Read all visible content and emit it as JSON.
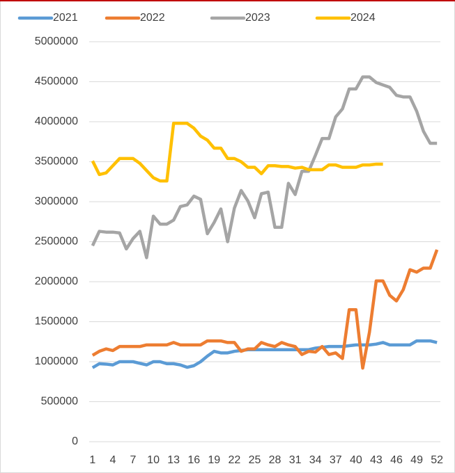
{
  "chart_data": {
    "type": "line",
    "x": [
      1,
      2,
      3,
      4,
      5,
      6,
      7,
      8,
      9,
      10,
      11,
      12,
      13,
      14,
      15,
      16,
      17,
      18,
      19,
      20,
      21,
      22,
      23,
      24,
      25,
      26,
      27,
      28,
      29,
      30,
      31,
      32,
      33,
      34,
      35,
      36,
      37,
      38,
      39,
      40,
      41,
      42,
      43,
      44,
      45,
      46,
      47,
      48,
      49,
      50,
      51,
      52
    ],
    "xlim": [
      0.5,
      52.5
    ],
    "xticks": [
      1,
      4,
      7,
      10,
      13,
      16,
      19,
      22,
      25,
      28,
      31,
      34,
      37,
      40,
      43,
      46,
      49,
      52
    ],
    "ylim": [
      0,
      5000000
    ],
    "yticks": [
      0,
      500000,
      1000000,
      1500000,
      2000000,
      2500000,
      3000000,
      3500000,
      4000000,
      4500000,
      5000000
    ],
    "grid": true,
    "legend": "top",
    "series": [
      {
        "name": "2021",
        "color": "#5b9bd5",
        "values": [
          925000,
          975000,
          970000,
          960000,
          1000000,
          1000000,
          1000000,
          980000,
          960000,
          1000000,
          1000000,
          975000,
          975000,
          960000,
          930000,
          950000,
          1000000,
          1070000,
          1130000,
          1110000,
          1110000,
          1130000,
          1140000,
          1150000,
          1150000,
          1150000,
          1150000,
          1150000,
          1150000,
          1150000,
          1150000,
          1150000,
          1150000,
          1170000,
          1180000,
          1190000,
          1190000,
          1190000,
          1200000,
          1210000,
          1210000,
          1210000,
          1220000,
          1240000,
          1210000,
          1210000,
          1210000,
          1210000,
          1260000,
          1260000,
          1260000,
          1240000
        ]
      },
      {
        "name": "2022",
        "color": "#ed7d31",
        "values": [
          1080000,
          1130000,
          1160000,
          1140000,
          1190000,
          1190000,
          1190000,
          1190000,
          1210000,
          1210000,
          1210000,
          1210000,
          1240000,
          1210000,
          1210000,
          1210000,
          1210000,
          1260000,
          1260000,
          1260000,
          1240000,
          1240000,
          1130000,
          1160000,
          1160000,
          1240000,
          1210000,
          1190000,
          1240000,
          1210000,
          1190000,
          1090000,
          1130000,
          1120000,
          1190000,
          1090000,
          1110000,
          1040000,
          1650000,
          1650000,
          920000,
          1370000,
          2010000,
          2010000,
          1830000,
          1760000,
          1900000,
          2150000,
          2120000,
          2170000,
          2170000,
          2400000
        ]
      },
      {
        "name": "2023",
        "color": "#a5a5a5",
        "values": [
          2450000,
          2630000,
          2620000,
          2620000,
          2610000,
          2410000,
          2540000,
          2630000,
          2300000,
          2820000,
          2720000,
          2720000,
          2770000,
          2940000,
          2960000,
          3070000,
          3030000,
          2600000,
          2740000,
          2910000,
          2500000,
          2920000,
          3140000,
          3010000,
          2800000,
          3100000,
          3120000,
          2680000,
          2680000,
          3230000,
          3090000,
          3380000,
          3380000,
          3580000,
          3790000,
          3790000,
          4060000,
          4160000,
          4410000,
          4410000,
          4560000,
          4560000,
          4490000,
          4460000,
          4430000,
          4330000,
          4310000,
          4310000,
          4130000,
          3880000,
          3730000,
          3730000
        ]
      },
      {
        "name": "2024",
        "color": "#ffc000",
        "values": [
          3510000,
          3340000,
          3360000,
          3450000,
          3540000,
          3540000,
          3540000,
          3480000,
          3390000,
          3300000,
          3260000,
          3260000,
          3980000,
          3980000,
          3980000,
          3920000,
          3820000,
          3770000,
          3670000,
          3670000,
          3540000,
          3540000,
          3500000,
          3430000,
          3430000,
          3350000,
          3450000,
          3450000,
          3440000,
          3440000,
          3420000,
          3430000,
          3400000,
          3400000,
          3400000,
          3460000,
          3460000,
          3430000,
          3430000,
          3430000,
          3460000,
          3460000,
          3470000,
          3470000,
          null,
          null,
          null,
          null,
          null,
          null,
          null,
          null
        ]
      }
    ]
  }
}
